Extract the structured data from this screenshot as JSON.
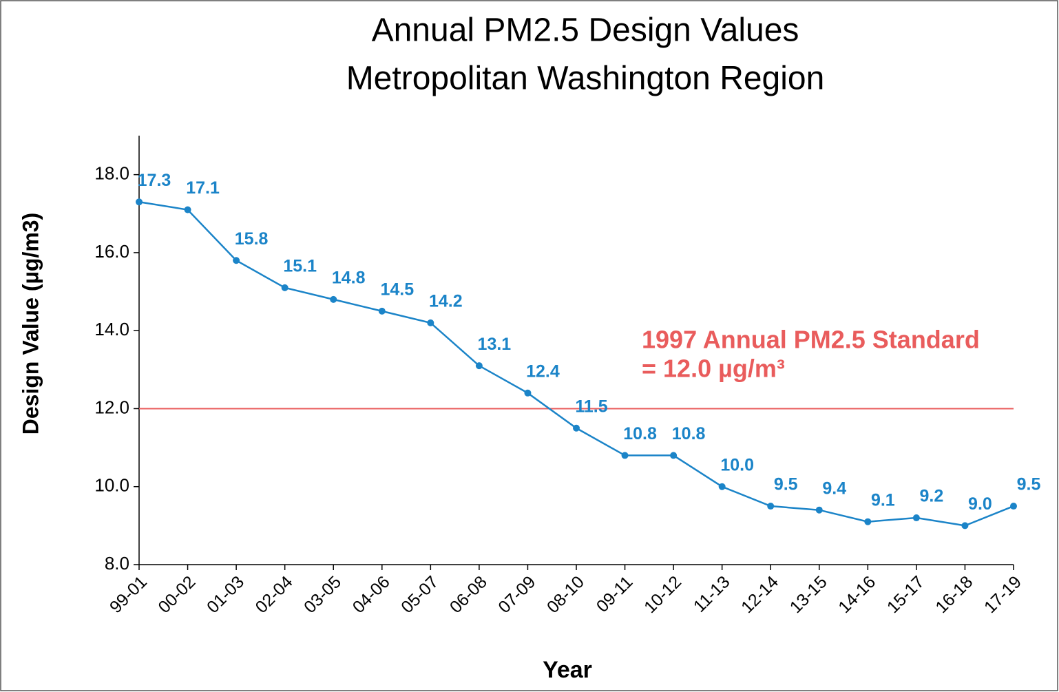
{
  "chart_data": {
    "type": "line",
    "title": [
      "Annual PM2.5 Design Values",
      "Metropolitan Washington Region"
    ],
    "ylabel": "Design Value (µg/m3)",
    "xlabel": "Year",
    "categories": [
      "99-01",
      "00-02",
      "01-03",
      "02-04",
      "03-05",
      "04-06",
      "05-07",
      "06-08",
      "07-09",
      "08-10",
      "09-11",
      "10-12",
      "11-13",
      "12-14",
      "13-15",
      "14-16",
      "15-17",
      "16-18",
      "17-19"
    ],
    "series": [
      {
        "color": "#1b84c8",
        "values": [
          17.3,
          17.1,
          15.8,
          15.1,
          14.8,
          14.5,
          14.2,
          13.1,
          12.4,
          11.5,
          10.8,
          10.8,
          10.0,
          9.5,
          9.4,
          9.1,
          9.2,
          9.0,
          9.5
        ],
        "value_labels": [
          "17.3",
          "17.1",
          "15.8",
          "15.1",
          "14.8",
          "14.5",
          "14.2",
          "13.1",
          "12.4",
          "11.5",
          "10.8",
          "10.8",
          "10.0",
          "9.5",
          "9.4",
          "9.1",
          "9.2",
          "9.0",
          "9.5"
        ]
      }
    ],
    "ylim": [
      8,
      19
    ],
    "yticks": [
      {
        "value": 8,
        "label": "8.0"
      },
      {
        "value": 10,
        "label": "10.0"
      },
      {
        "value": 12,
        "label": "12.0"
      },
      {
        "value": 14,
        "label": "14.0"
      },
      {
        "value": 16,
        "label": "16.0"
      },
      {
        "value": 18,
        "label": "18.0"
      }
    ],
    "reference_line": {
      "value": 12,
      "color": "#e95c5c",
      "label": [
        "1997 Annual PM2.5 Standard",
        "= 12.0 µg/m³"
      ]
    }
  }
}
